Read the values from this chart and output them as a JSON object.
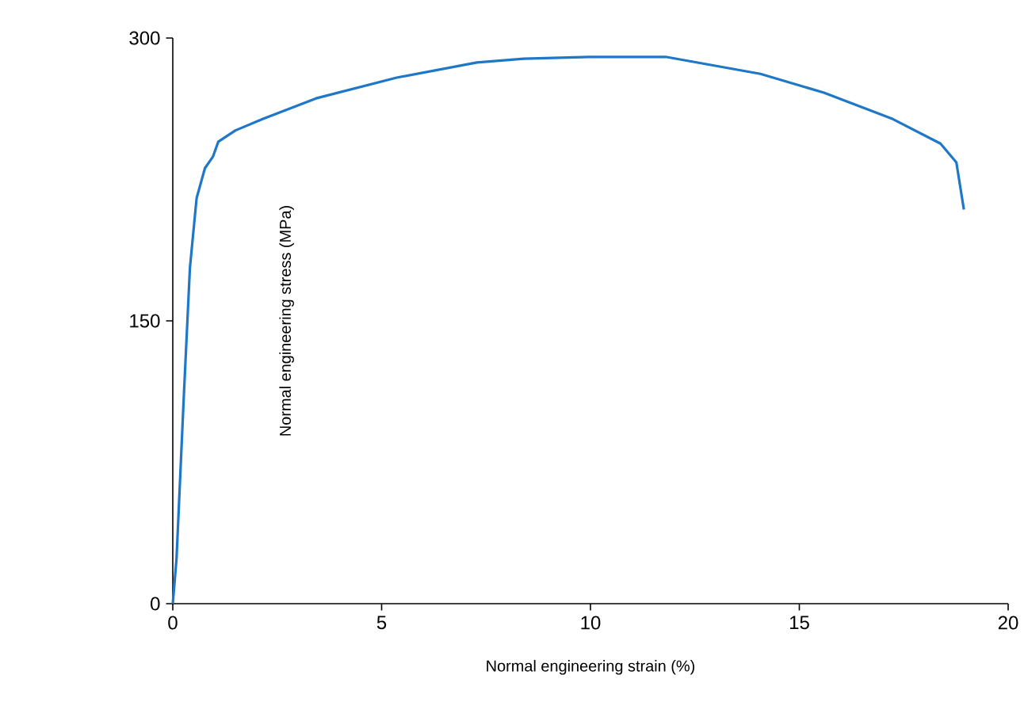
{
  "chart_data": {
    "type": "line",
    "xlabel": "Normal engineering strain (%)",
    "ylabel": "Normal engineering stress (MPa)",
    "xlim": [
      0,
      20
    ],
    "ylim": [
      0,
      300
    ],
    "xticks": [
      0,
      5,
      10,
      15,
      20
    ],
    "yticks": [
      0,
      150,
      300
    ],
    "series": [
      {
        "color": "#1f77c8",
        "x": [
          0,
          0.09,
          0.26,
          0.41,
          0.57,
          0.77,
          0.96,
          1.09,
          1.5,
          2.15,
          3.43,
          5.36,
          7.28,
          8.4,
          9.96,
          11.8,
          14.07,
          15.59,
          17.24,
          18.38,
          18.76,
          18.94
        ],
        "values": [
          0,
          24,
          108,
          178,
          215,
          231,
          237,
          245,
          251,
          257,
          268,
          279,
          287,
          289,
          290,
          290,
          281,
          271,
          257,
          244,
          234,
          209
        ]
      }
    ]
  }
}
